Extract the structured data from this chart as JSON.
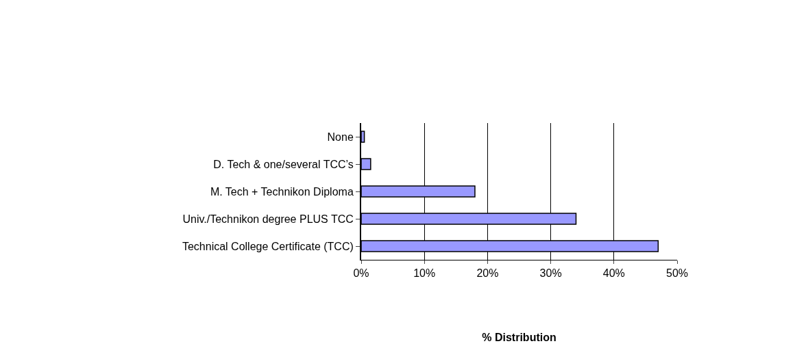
{
  "chart_data": {
    "type": "bar",
    "orientation": "horizontal",
    "xlabel": "% Distribution",
    "categories": [
      "None",
      "D. Tech & one/several TCC’s",
      "M. Tech + Technikon Diploma",
      "Univ./Technikon degree PLUS TCC",
      "Technical College Certificate (TCC)"
    ],
    "values": [
      0.5,
      1.5,
      18,
      34,
      47
    ],
    "color": "#9999ff",
    "xlim": [
      0,
      50
    ],
    "xticks": [
      {
        "value": 0,
        "label": "0%"
      },
      {
        "value": 10,
        "label": "10%"
      },
      {
        "value": 20,
        "label": "20%"
      },
      {
        "value": 30,
        "label": "30%"
      },
      {
        "value": 40,
        "label": "40%"
      },
      {
        "value": 50,
        "label": "50%"
      }
    ],
    "grid": "x",
    "legend": false
  }
}
